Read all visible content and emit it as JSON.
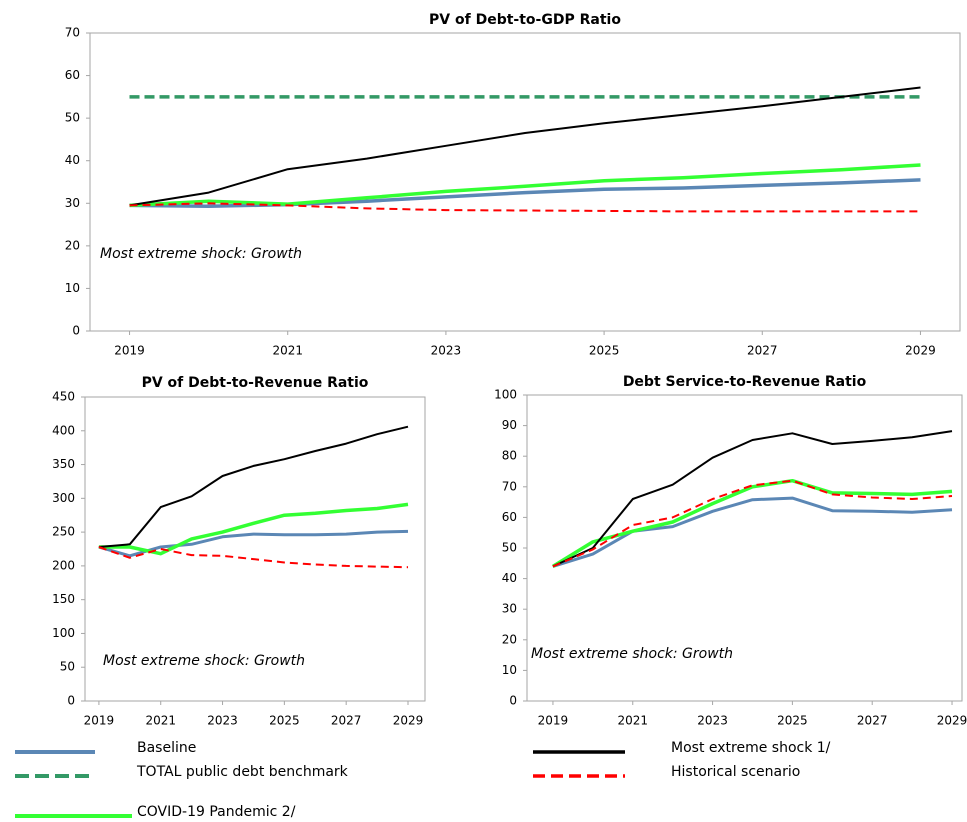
{
  "chart_data": [
    {
      "type": "line",
      "title": "PV of Debt-to-GDP Ratio",
      "annotation": "Most extreme shock: Growth",
      "x": [
        2019,
        2020,
        2021,
        2022,
        2023,
        2024,
        2025,
        2026,
        2027,
        2028,
        2029
      ],
      "xlim": [
        2018.5,
        2029.5
      ],
      "xticks": [
        2019,
        2021,
        2023,
        2025,
        2027,
        2029
      ],
      "ylim": [
        0,
        70
      ],
      "yticks": [
        0,
        10,
        20,
        30,
        40,
        50,
        60,
        70
      ],
      "series": [
        {
          "name": "Baseline",
          "color": "#5b87b5",
          "width": 3.5,
          "dash": false,
          "values": [
            29.5,
            29.3,
            29.7,
            30.5,
            31.5,
            32.5,
            33.3,
            33.6,
            34.2,
            34.8,
            35.5
          ]
        },
        {
          "name": "TOTAL public debt benchmark",
          "color": "#339966",
          "width": 3.5,
          "dash": true,
          "values": [
            55,
            55,
            55,
            55,
            55,
            55,
            55,
            55,
            55,
            55,
            55
          ]
        },
        {
          "name": "COVID-19 Pandemic 2/",
          "color": "#33ff33",
          "width": 3.5,
          "dash": false,
          "values": [
            29.5,
            30.5,
            29.8,
            31.3,
            32.8,
            34,
            35.3,
            36,
            37,
            37.9,
            39
          ]
        },
        {
          "name": "Most extreme shock 1/",
          "color": "#000000",
          "width": 2,
          "dash": false,
          "values": [
            29.5,
            32.5,
            38,
            40.5,
            43.5,
            46.5,
            48.8,
            50.8,
            52.8,
            55,
            57.2
          ]
        },
        {
          "name": "Historical scenario",
          "color": "#ff0000",
          "width": 2,
          "dash": true,
          "values": [
            29.5,
            30,
            29.5,
            28.8,
            28.4,
            28.3,
            28.2,
            28.1,
            28.1,
            28.1,
            28.1
          ]
        }
      ]
    },
    {
      "type": "line",
      "title": "PV of Debt-to-Revenue Ratio",
      "annotation": "Most extreme shock: Growth",
      "x": [
        2019,
        2020,
        2021,
        2022,
        2023,
        2024,
        2025,
        2026,
        2027,
        2028,
        2029
      ],
      "xlim": [
        2018.55,
        2029.55
      ],
      "xticks": [
        2019,
        2021,
        2023,
        2025,
        2027,
        2029
      ],
      "ylim": [
        0,
        450
      ],
      "yticks": [
        0,
        50,
        100,
        150,
        200,
        250,
        300,
        350,
        400,
        450
      ],
      "series": [
        {
          "color": "#5b87b5",
          "width": 3,
          "dash": false,
          "values": [
            228,
            215,
            228,
            232,
            243,
            247,
            246,
            246,
            247,
            250,
            251
          ]
        },
        {
          "color": "#33ff33",
          "width": 3.5,
          "dash": false,
          "values": [
            228,
            228,
            218,
            240,
            250,
            263,
            275,
            278,
            282,
            285,
            291
          ]
        },
        {
          "color": "#000000",
          "width": 2,
          "dash": false,
          "values": [
            228,
            232,
            287,
            303,
            333,
            348,
            358,
            370,
            381,
            395,
            406
          ]
        },
        {
          "color": "#ff0000",
          "width": 2,
          "dash": true,
          "values": [
            228,
            212,
            225,
            216,
            215,
            210,
            205,
            202,
            200,
            199,
            198
          ]
        }
      ]
    },
    {
      "type": "line",
      "title": "Debt Service-to-Revenue Ratio",
      "annotation": "Most extreme shock: Growth",
      "x": [
        2019,
        2020,
        2021,
        2022,
        2023,
        2024,
        2025,
        2026,
        2027,
        2028,
        2029
      ],
      "xlim": [
        2018.35,
        2029.25
      ],
      "xticks": [
        2019,
        2021,
        2023,
        2025,
        2027,
        2029
      ],
      "ylim": [
        0,
        100
      ],
      "yticks": [
        0,
        10,
        20,
        30,
        40,
        50,
        60,
        70,
        80,
        90,
        100
      ],
      "series": [
        {
          "color": "#5b87b5",
          "width": 3,
          "dash": false,
          "values": [
            44,
            48,
            55.5,
            57,
            62,
            65.8,
            66.3,
            62.2,
            62,
            61.7,
            62.5
          ]
        },
        {
          "color": "#33ff33",
          "width": 3.5,
          "dash": false,
          "values": [
            44,
            52,
            55.5,
            58.5,
            64.5,
            70,
            72,
            68,
            67.8,
            67.5,
            68.5
          ]
        },
        {
          "color": "#000000",
          "width": 2,
          "dash": false,
          "values": [
            44,
            50,
            66,
            70.7,
            79.5,
            85.3,
            87.5,
            84,
            85,
            86.2,
            88.2
          ]
        },
        {
          "color": "#ff0000",
          "width": 2,
          "dash": true,
          "values": [
            44,
            49.5,
            57.5,
            60,
            66,
            70.5,
            72,
            67.5,
            66.5,
            66,
            67
          ]
        }
      ]
    }
  ]
}
